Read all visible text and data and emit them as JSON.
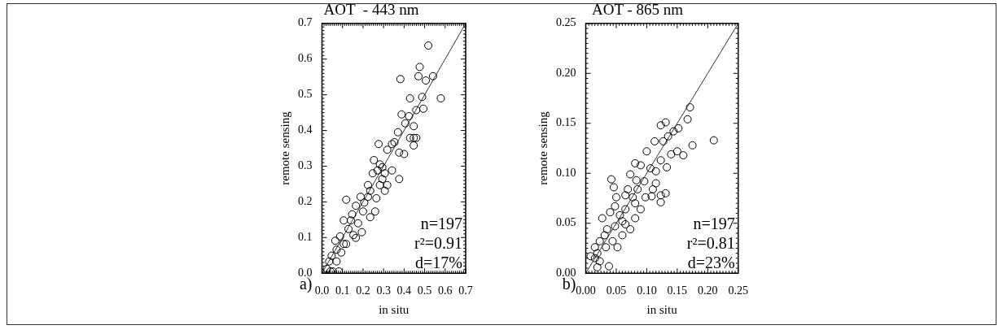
{
  "chart_data": [
    {
      "type": "scatter",
      "title": "AOT  - 443 nm",
      "xlabel": "in situ",
      "ylabel": "remote sensing",
      "xlim": [
        0,
        0.7
      ],
      "xticks": [
        {
          "value": 0,
          "label": "0.0"
        },
        0.1,
        0.2,
        0.3,
        0.4,
        0.5,
        0.6,
        0.7
      ],
      "ylim": [
        0,
        0.7
      ],
      "yticks": [
        {
          "value": 0,
          "label": "0.0"
        },
        0.1,
        0.2,
        0.3,
        0.4,
        0.5,
        0.6,
        0.7
      ],
      "marker": "circle",
      "legend": false,
      "annotations": [
        "n=197",
        "r²=0.91",
        "d=17%",
        "a)"
      ],
      "series": [
        {
          "color": "#000000",
          "x": [
            0.518,
            0.382,
            0.476,
            0.47,
            0.506,
            0.541,
            0.579,
            0.429,
            0.488,
            0.494,
            0.459,
            0.388,
            0.424,
            0.447,
            0.406,
            0.447,
            0.429,
            0.459,
            0.447,
            0.4,
            0.37,
            0.353,
            0.376,
            0.276,
            0.318,
            0.341,
            0.376,
            0.341,
            0.294,
            0.253,
            0.247,
            0.282,
            0.306,
            0.235,
            0.265,
            0.224,
            0.188,
            0.259,
            0.235,
            0.118,
            0.165,
            0.2,
            0.147,
            0.176,
            0.194,
            0.106,
            0.129,
            0.153,
            0.088,
            0.118,
            0.071,
            0.047,
            0.035,
            0.024,
            0.082,
            0.065,
            0.165,
            0.053,
            0.224,
            0.206,
            0.271,
            0.306,
            0.294,
            0.282,
            0.318,
            0.141,
            0.106,
            0.071,
            0.094,
            0.041
          ],
          "values": [
            0.638,
            0.544,
            0.578,
            0.552,
            0.54,
            0.552,
            0.49,
            0.49,
            0.494,
            0.461,
            0.457,
            0.445,
            0.44,
            0.412,
            0.42,
            0.379,
            0.379,
            0.379,
            0.358,
            0.334,
            0.395,
            0.367,
            0.338,
            0.362,
            0.346,
            0.362,
            0.264,
            0.288,
            0.297,
            0.317,
            0.28,
            0.247,
            0.231,
            0.231,
            0.21,
            0.247,
            0.214,
            0.173,
            0.157,
            0.206,
            0.189,
            0.173,
            0.165,
            0.14,
            0.115,
            0.148,
            0.124,
            0.107,
            0.103,
            0.082,
            0.066,
            0.049,
            0.033,
            0.012,
            0.005,
            0.091,
            0.099,
            0.005,
            0.214,
            0.198,
            0.288,
            0.28,
            0.264,
            0.305,
            0.247,
            0.148,
            0.082,
            0.033,
            0.058,
            0.005
          ]
        },
        {
          "type": "line",
          "color": "#000000",
          "marker": "none",
          "x": [
            0,
            0.7
          ],
          "values": [
            0,
            0.7
          ]
        }
      ]
    },
    {
      "type": "scatter",
      "title": "AOT - 865 nm",
      "xlabel": "in situ",
      "ylabel": "remote sensing",
      "xlim": [
        0,
        0.25
      ],
      "xticks": [
        {
          "value": 0,
          "label": "0.00"
        },
        {
          "value": 0.05,
          "label": "0.05"
        },
        {
          "value": 0.1,
          "label": "0.10"
        },
        {
          "value": 0.15,
          "label": "0.15"
        },
        {
          "value": 0.2,
          "label": "0.20"
        },
        {
          "value": 0.25,
          "label": "0.25"
        }
      ],
      "ylim": [
        0,
        0.25
      ],
      "yticks": [
        {
          "value": 0,
          "label": "0.00"
        },
        {
          "value": 0.05,
          "label": "0.05"
        },
        {
          "value": 0.1,
          "label": "0.10"
        },
        {
          "value": 0.15,
          "label": "0.15"
        },
        {
          "value": 0.2,
          "label": "0.20"
        },
        {
          "value": 0.25,
          "label": "0.25"
        }
      ],
      "marker": "circle",
      "legend": false,
      "annotations": [
        "n=197",
        "r²=0.81",
        "d=23%",
        "b)"
      ],
      "series": [
        {
          "color": "#000000",
          "x": [
            0.171,
            0.167,
            0.175,
            0.21,
            0.131,
            0.123,
            0.152,
            0.144,
            0.135,
            0.127,
            0.113,
            0.1,
            0.15,
            0.16,
            0.14,
            0.133,
            0.123,
            0.115,
            0.106,
            0.081,
            0.09,
            0.073,
            0.083,
            0.096,
            0.115,
            0.123,
            0.108,
            0.131,
            0.123,
            0.085,
            0.069,
            0.077,
            0.09,
            0.065,
            0.056,
            0.05,
            0.042,
            0.046,
            0.04,
            0.027,
            0.035,
            0.048,
            0.06,
            0.073,
            0.031,
            0.044,
            0.052,
            0.019,
            0.015,
            0.023,
            0.008,
            0.038,
            0.033,
            0.015,
            0.023,
            0.06,
            0.081,
            0.098,
            0.11,
            0.065,
            0.048,
            0.019,
            0.081,
            0.065
          ],
          "values": [
            0.166,
            0.154,
            0.128,
            0.133,
            0.151,
            0.148,
            0.145,
            0.142,
            0.137,
            0.132,
            0.132,
            0.122,
            0.122,
            0.118,
            0.119,
            0.106,
            0.113,
            0.102,
            0.105,
            0.11,
            0.108,
            0.099,
            0.093,
            0.092,
            0.09,
            0.078,
            0.077,
            0.08,
            0.071,
            0.084,
            0.084,
            0.076,
            0.064,
            0.064,
            0.058,
            0.076,
            0.094,
            0.086,
            0.061,
            0.055,
            0.044,
            0.047,
            0.038,
            0.044,
            0.038,
            0.032,
            0.026,
            0.02,
            0.015,
            0.012,
            0.017,
            0.007,
            0.026,
            0.026,
            0.032,
            0.052,
            0.07,
            0.076,
            0.084,
            0.078,
            0.067,
            0.006,
            0.055,
            0.049
          ]
        },
        {
          "type": "line",
          "color": "#000000",
          "marker": "none",
          "x": [
            0,
            0.25
          ],
          "values": [
            0,
            0.25
          ]
        }
      ]
    }
  ]
}
